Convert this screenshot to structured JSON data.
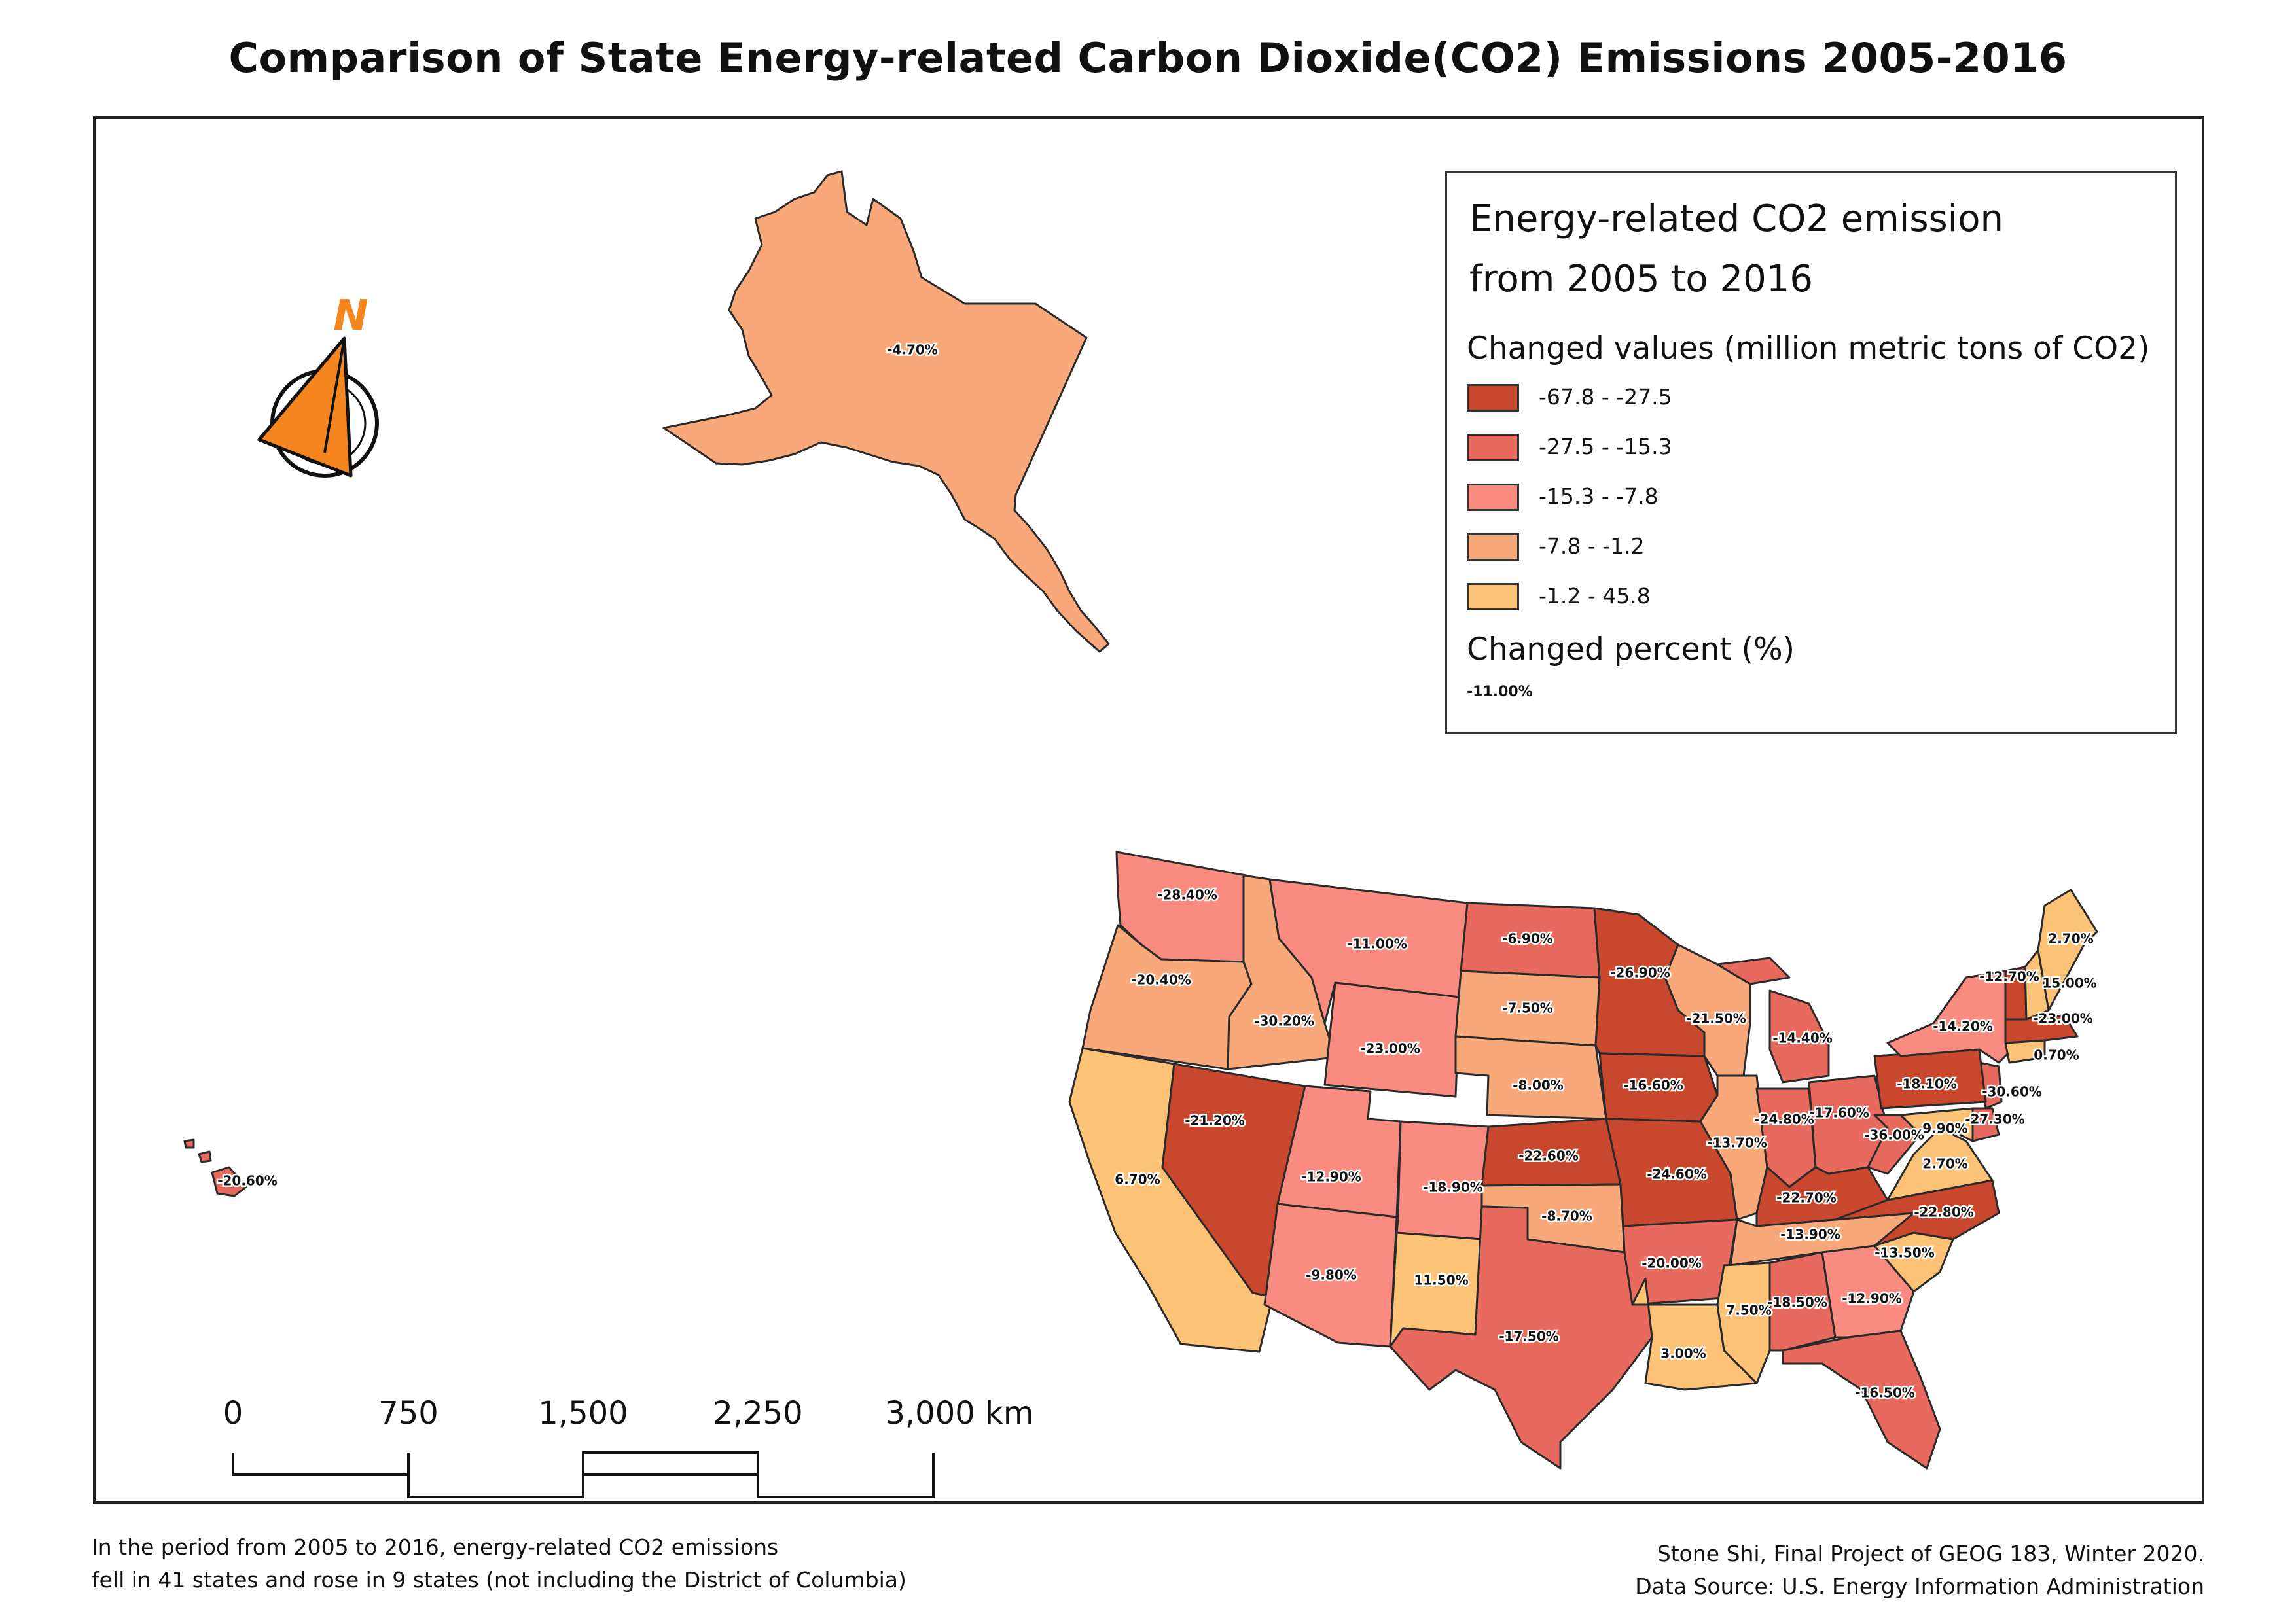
{
  "title": "Comparison of State Energy-related Carbon Dioxide(CO2) Emissions 2005-2016",
  "legend": {
    "title_line1": "Energy-related CO2 emission",
    "title_line2": "from 2005 to 2016",
    "subtitle": "Changed values (million metric tons of CO2)",
    "classes": [
      {
        "label": "-67.8 - -27.5",
        "color": "#c9472d"
      },
      {
        "label": "-27.5 - -15.3",
        "color": "#e8695d"
      },
      {
        "label": "-15.3 - -7.8",
        "color": "#f98b80"
      },
      {
        "label": "-7.8 - -1.2",
        "color": "#f9a87a"
      },
      {
        "label": "-1.2 - 45.8",
        "color": "#fcc276"
      }
    ],
    "percent_title": "Changed percent (%)",
    "percent_sample": "-11.00%"
  },
  "north_arrow": {
    "letter": "N",
    "color": "#f5861f"
  },
  "scalebar": {
    "labels": [
      "0",
      "750",
      "1,500",
      "2,250",
      "3,000 km"
    ]
  },
  "footer": {
    "left_line1": "In the period from 2005 to 2016, energy-related CO2 emissions",
    "left_line2": "fell in 41 states and rose in 9 states (not including the District of Columbia)",
    "right_line1": "Stone Shi, Final Project of GEOG 183, Winter 2020.",
    "right_line2": "Data Source: U.S. Energy Information Administration"
  },
  "states": [
    {
      "name": "Alaska",
      "class": 3,
      "label": "-4.70%"
    },
    {
      "name": "Hawaii",
      "class": 1,
      "label": "-20.60%"
    },
    {
      "name": "Washington",
      "class": 2,
      "label": "-28.40%"
    },
    {
      "name": "Oregon",
      "class": 3,
      "label": "-20.40%"
    },
    {
      "name": "California",
      "class": 4,
      "label": "6.70%"
    },
    {
      "name": "Nevada",
      "class": 0,
      "label": "-21.20%"
    },
    {
      "name": "Idaho",
      "class": 3,
      "label": "-30.20%"
    },
    {
      "name": "Montana",
      "class": 2,
      "label": "-11.00%"
    },
    {
      "name": "Wyoming",
      "class": 2,
      "label": "-23.00%"
    },
    {
      "name": "Utah",
      "class": 2,
      "label": "-12.90%"
    },
    {
      "name": "Arizona",
      "class": 2,
      "label": "-9.80%"
    },
    {
      "name": "Colorado",
      "class": 2,
      "label": "-18.90%"
    },
    {
      "name": "New Mexico",
      "class": 4,
      "label": "11.50%"
    },
    {
      "name": "North Dakota",
      "class": 1,
      "label": "-6.90%"
    },
    {
      "name": "South Dakota",
      "class": 3,
      "label": "-7.50%"
    },
    {
      "name": "Nebraska",
      "class": 3,
      "label": "-8.00%"
    },
    {
      "name": "Kansas",
      "class": 0,
      "label": "-22.60%"
    },
    {
      "name": "Oklahoma",
      "class": 3,
      "label": "-8.70%"
    },
    {
      "name": "Texas",
      "class": 1,
      "label": "-17.50%"
    },
    {
      "name": "Minnesota",
      "class": 0,
      "label": "-26.90%"
    },
    {
      "name": "Iowa",
      "class": 0,
      "label": "-16.60%"
    },
    {
      "name": "Missouri",
      "class": 0,
      "label": "-24.60%"
    },
    {
      "name": "Arkansas",
      "class": 1,
      "label": "-20.00%"
    },
    {
      "name": "Louisiana",
      "class": 4,
      "label": "3.00%"
    },
    {
      "name": "Wisconsin",
      "class": 3,
      "label": "-21.50%"
    },
    {
      "name": "Illinois",
      "class": 3,
      "label": "-13.70%"
    },
    {
      "name": "Michigan",
      "class": 1,
      "label": "-14.40%"
    },
    {
      "name": "Indiana",
      "class": 1,
      "label": "-24.80%"
    },
    {
      "name": "Ohio",
      "class": 1,
      "label": "-17.60%"
    },
    {
      "name": "Kentucky",
      "class": 0,
      "label": "-22.70%"
    },
    {
      "name": "Tennessee",
      "class": 3,
      "label": "-13.90%"
    },
    {
      "name": "Mississippi",
      "class": 4,
      "label": "7.50%"
    },
    {
      "name": "Alabama",
      "class": 1,
      "label": "-18.50%"
    },
    {
      "name": "Georgia",
      "class": 2,
      "label": "-12.90%"
    },
    {
      "name": "Florida",
      "class": 1,
      "label": "-16.50%"
    },
    {
      "name": "South Carolina",
      "class": 4,
      "label": "-13.50%"
    },
    {
      "name": "North Carolina",
      "class": 0,
      "label": "-22.80%"
    },
    {
      "name": "Virginia",
      "class": 4,
      "label": "2.70%"
    },
    {
      "name": "West Virginia",
      "class": 1,
      "label": "-36.00%"
    },
    {
      "name": "Maryland",
      "class": 4,
      "label": "9.90%"
    },
    {
      "name": "Delaware",
      "class": 1,
      "label": "-27.30%"
    },
    {
      "name": "New Jersey",
      "class": 1,
      "label": "-30.60%"
    },
    {
      "name": "Pennsylvania",
      "class": 0,
      "label": "-18.10%"
    },
    {
      "name": "New York",
      "class": 2,
      "label": "-14.20%"
    },
    {
      "name": "Connecticut",
      "class": 4,
      "label": "0.70%"
    },
    {
      "name": "Massachusetts",
      "class": 0,
      "label": "-23.00%"
    },
    {
      "name": "Vermont",
      "class": 0,
      "label": "-12.70%"
    },
    {
      "name": "New Hampshire",
      "class": 4,
      "label": "15.00%"
    },
    {
      "name": "Maine",
      "class": 4,
      "label": "2.70%"
    }
  ]
}
